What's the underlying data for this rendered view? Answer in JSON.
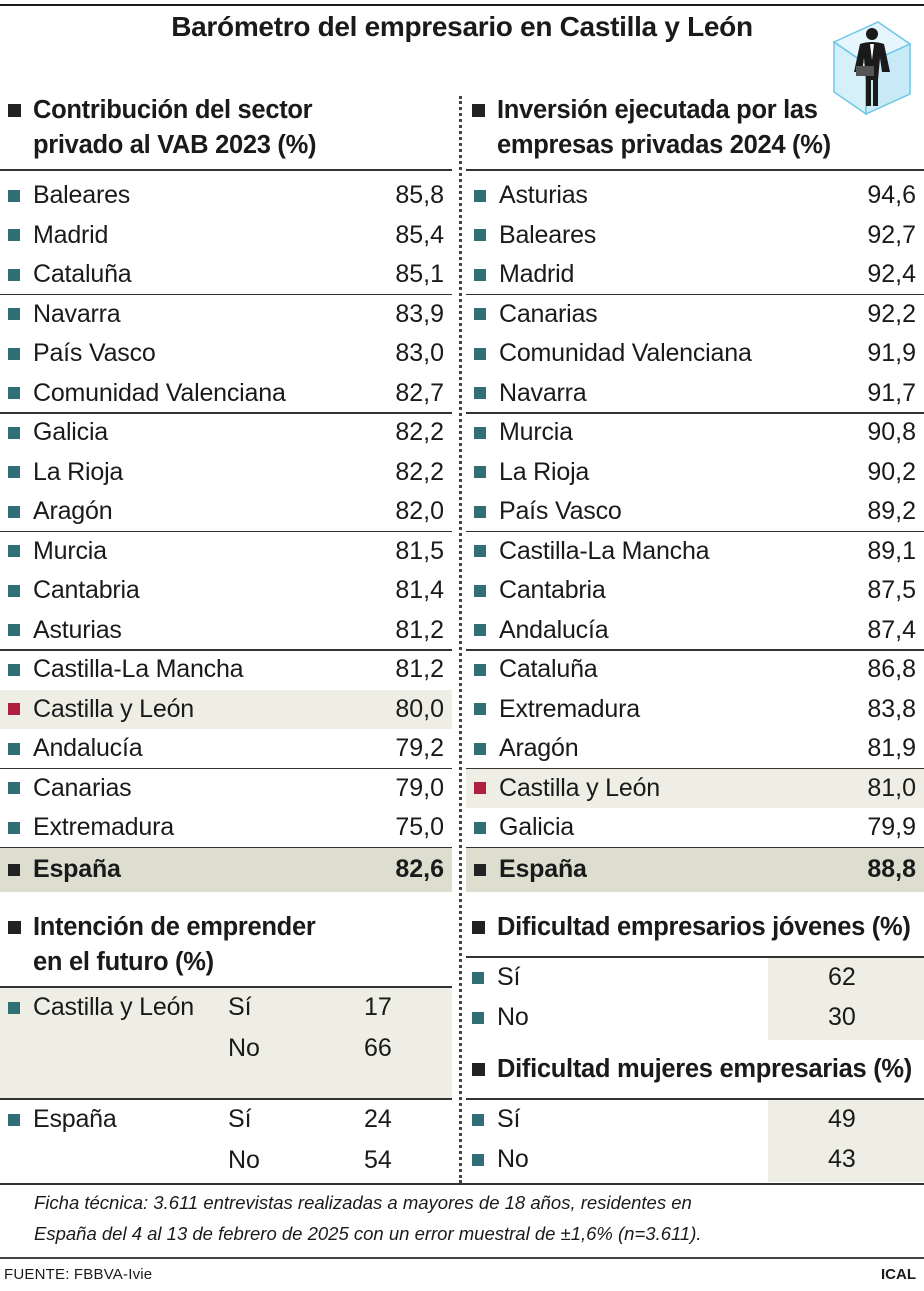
{
  "title": "Barómetro del empresario en Castilla y León",
  "colors": {
    "teal_bullet": "#2f6f75",
    "highlight_bullet": "#b01f3e",
    "highlight_bg": "#eeeee4",
    "total_bg": "#deded0"
  },
  "vab": {
    "heading_line1": "Contribución del sector",
    "heading_line2": "privado al VAB 2023 (%)",
    "rows": [
      {
        "name": "Baleares",
        "value": "85,8"
      },
      {
        "name": "Madrid",
        "value": "85,4"
      },
      {
        "name": "Cataluña",
        "value": "85,1"
      },
      {
        "name": "Navarra",
        "value": "83,9"
      },
      {
        "name": "País Vasco",
        "value": "83,0"
      },
      {
        "name": "Comunidad Valenciana",
        "value": "82,7"
      },
      {
        "name": "Galicia",
        "value": "82,2"
      },
      {
        "name": "La Rioja",
        "value": "82,2"
      },
      {
        "name": "Aragón",
        "value": "82,0"
      },
      {
        "name": "Murcia",
        "value": "81,5"
      },
      {
        "name": "Cantabria",
        "value": "81,4"
      },
      {
        "name": "Asturias",
        "value": "81,2"
      },
      {
        "name": "Castilla-La Mancha",
        "value": "81,2"
      },
      {
        "name": "Castilla y León",
        "value": "80,0"
      },
      {
        "name": "Andalucía",
        "value": "79,2"
      },
      {
        "name": "Canarias",
        "value": "79,0"
      },
      {
        "name": "Extremadura",
        "value": "75,0"
      }
    ],
    "total": {
      "name": "España",
      "value": "82,6"
    }
  },
  "inversion": {
    "heading_line1": "Inversión ejecutada por las",
    "heading_line2": "empresas privadas 2024 (%)",
    "rows": [
      {
        "name": "Asturias",
        "value": "94,6"
      },
      {
        "name": "Baleares",
        "value": "92,7"
      },
      {
        "name": "Madrid",
        "value": "92,4"
      },
      {
        "name": "Canarias",
        "value": "92,2"
      },
      {
        "name": "Comunidad Valenciana",
        "value": "91,9"
      },
      {
        "name": "Navarra",
        "value": "91,7"
      },
      {
        "name": "Murcia",
        "value": "90,8"
      },
      {
        "name": "La Rioja",
        "value": "90,2"
      },
      {
        "name": "País Vasco",
        "value": "89,2"
      },
      {
        "name": "Castilla-La Mancha",
        "value": "89,1"
      },
      {
        "name": "Cantabria",
        "value": "87,5"
      },
      {
        "name": "Andalucía",
        "value": "87,4"
      },
      {
        "name": "Cataluña",
        "value": "86,8"
      },
      {
        "name": "Extremadura",
        "value": "83,8"
      },
      {
        "name": "Aragón",
        "value": "81,9"
      },
      {
        "name": "Castilla y León",
        "value": "81,0"
      },
      {
        "name": "Galicia",
        "value": "79,9"
      }
    ],
    "total": {
      "name": "España",
      "value": "88,8"
    }
  },
  "intencion": {
    "heading_line1": "Intención de emprender",
    "heading_line2": "en el futuro (%)",
    "groups": [
      {
        "region": "Castilla y León",
        "si_label": "Sí",
        "si": "17",
        "no_label": "No",
        "no": "66"
      },
      {
        "region": "España",
        "si_label": "Sí",
        "si": "24",
        "no_label": "No",
        "no": "54"
      }
    ]
  },
  "jovenes": {
    "heading": "Dificultad empresarios jóvenes (%)",
    "rows": [
      {
        "name": "Sí",
        "value": "62"
      },
      {
        "name": "No",
        "value": "30"
      }
    ]
  },
  "mujeres": {
    "heading": "Dificultad mujeres empresarias (%)",
    "rows": [
      {
        "name": "Sí",
        "value": "49"
      },
      {
        "name": "No",
        "value": "43"
      }
    ]
  },
  "ficha_line1": "Ficha técnica: 3.611 entrevistas realizadas a mayores de 18 años, residentes en",
  "ficha_line2": "España del 4 al 13 de febrero de 2025 con un error muestral de ±1,6% (n=3.611).",
  "source": "FUENTE: FBBVA-Ivie",
  "agency": "ICAL",
  "logo_icon": "businessman-in-cube-icon"
}
